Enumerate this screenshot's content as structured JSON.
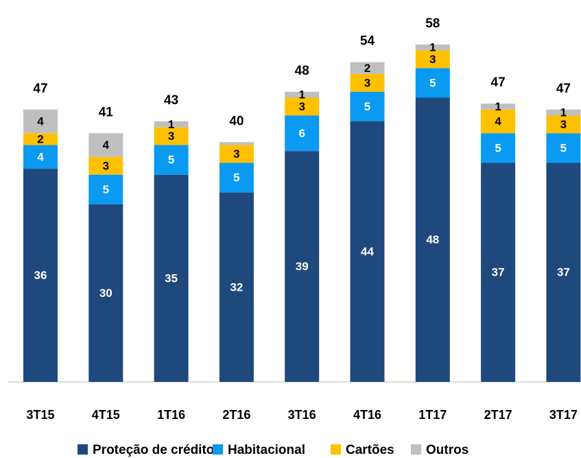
{
  "chart_data": {
    "type": "stacked_bar",
    "categories": [
      "3T15",
      "4T15",
      "1T16",
      "2T16",
      "3T16",
      "4T16",
      "1T17",
      "2T17",
      "3T17"
    ],
    "series": [
      {
        "name": "Proteção de crédito",
        "color": "#1f497d",
        "label_color": "#ffffff",
        "values": [
          36,
          30,
          35,
          32,
          39,
          44,
          48,
          37,
          37
        ]
      },
      {
        "name": "Habitacional",
        "color": "#0a9af2",
        "label_color": "#ffffff",
        "values": [
          4,
          5,
          5,
          5,
          6,
          5,
          5,
          5,
          5
        ]
      },
      {
        "name": "Cartões",
        "color": "#ffc000",
        "label_color": "#000000",
        "values": [
          2,
          3,
          3,
          3,
          3,
          3,
          3,
          4,
          3
        ]
      },
      {
        "name": "Outros",
        "color": "#bfbfbf",
        "label_color": "#000000",
        "values": [
          4,
          4,
          1,
          0.5,
          1,
          2,
          1,
          1,
          1
        ],
        "value_labels": [
          "4",
          "4",
          "1",
          null,
          "1",
          "2",
          "1",
          "1",
          "1"
        ]
      }
    ],
    "totals": [
      47,
      41,
      43,
      40,
      48,
      54,
      58,
      47,
      47
    ],
    "ylim": [
      0,
      64.5
    ],
    "legend": "bottom"
  }
}
